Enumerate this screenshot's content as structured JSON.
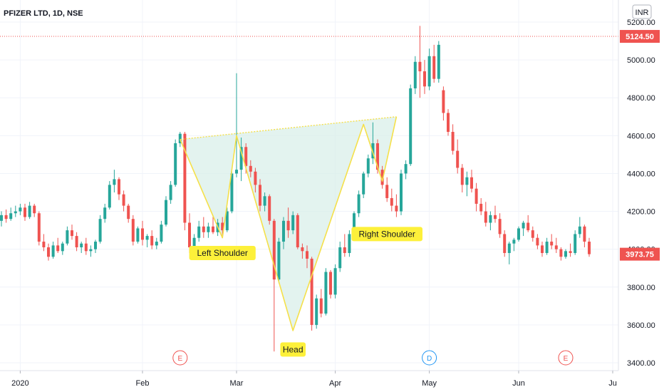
{
  "title": "PFIZER LTD, 1D, NSE",
  "currency": "INR",
  "colors": {
    "up": "#26a69a",
    "down": "#ef5350",
    "pattern": "#f5e04a",
    "fill": "#d9efea",
    "label_bg": "#fdf03a",
    "price_line": "#ef5350"
  },
  "chart_data": {
    "type": "candlestick",
    "y_ticks": [
      3400,
      3600,
      3800,
      4000,
      4200,
      4400,
      4600,
      4800,
      5000,
      5200
    ],
    "y_tick_labels": [
      "3400.00",
      "3600.00",
      "3800.00",
      "4000.00",
      "4200.00",
      "4400.00",
      "4600.00",
      "4800.00",
      "5000.00",
      "5200.00"
    ],
    "ylim": [
      3380,
      5270
    ],
    "x_ticks": [
      {
        "label": "2020",
        "index": 4
      },
      {
        "label": "Feb",
        "index": 30
      },
      {
        "label": "Mar",
        "index": 50
      },
      {
        "label": "Apr",
        "index": 71
      },
      {
        "label": "May",
        "index": 91
      },
      {
        "label": "Jun",
        "index": 110
      },
      {
        "label": "Ju",
        "index": 130
      }
    ],
    "x_range": [
      0,
      132
    ],
    "price_tags": [
      {
        "value": 5124.5,
        "label": "5124.50",
        "color": "#ef5350",
        "dotted_line": true
      },
      {
        "value": 3973.75,
        "label": "3973.75",
        "color": "#ef5350",
        "dotted_line": false
      }
    ],
    "events": [
      {
        "index": 38,
        "label": "E",
        "color": "#ef5350"
      },
      {
        "index": 91,
        "label": "D",
        "color": "#2196f3"
      },
      {
        "index": 120,
        "label": "E",
        "color": "#ef5350"
      }
    ],
    "pattern_points": [
      [
        38,
        4580
      ],
      [
        47,
        4060
      ],
      [
        50,
        4600
      ],
      [
        62,
        3570
      ],
      [
        77,
        4660
      ],
      [
        81,
        4360
      ],
      [
        84,
        4700
      ]
    ],
    "neckline": [
      [
        38,
        4580
      ],
      [
        84,
        4700
      ]
    ],
    "annotations": [
      {
        "text": "Left Shoulder",
        "index": 47,
        "value": 3980
      },
      {
        "text": "Head",
        "index": 62,
        "value": 3470
      },
      {
        "text": "Right Shoulder",
        "index": 82,
        "value": 4080
      }
    ],
    "candles": [
      [
        4150,
        4200,
        4120,
        4180
      ],
      [
        4180,
        4210,
        4140,
        4160
      ],
      [
        4160,
        4220,
        4150,
        4190
      ],
      [
        4190,
        4230,
        4170,
        4200
      ],
      [
        4200,
        4240,
        4180,
        4220
      ],
      [
        4220,
        4240,
        4150,
        4170
      ],
      [
        4170,
        4250,
        4160,
        4230
      ],
      [
        4230,
        4240,
        4170,
        4190
      ],
      [
        4190,
        4200,
        4020,
        4040
      ],
      [
        4040,
        4080,
        3990,
        4010
      ],
      [
        4010,
        4030,
        3940,
        3960
      ],
      [
        3960,
        4040,
        3950,
        4020
      ],
      [
        4020,
        4060,
        3980,
        3990
      ],
      [
        3990,
        4040,
        3970,
        4030
      ],
      [
        4030,
        4120,
        4020,
        4100
      ],
      [
        4100,
        4130,
        4050,
        4070
      ],
      [
        4070,
        4090,
        3990,
        4010
      ],
      [
        4010,
        4040,
        3980,
        4030
      ],
      [
        4030,
        4060,
        3970,
        3990
      ],
      [
        3990,
        4020,
        3960,
        4000
      ],
      [
        4000,
        4050,
        3980,
        4040
      ],
      [
        4040,
        4180,
        4030,
        4160
      ],
      [
        4160,
        4240,
        4140,
        4220
      ],
      [
        4220,
        4360,
        4210,
        4340
      ],
      [
        4340,
        4420,
        4300,
        4370
      ],
      [
        4370,
        4380,
        4260,
        4290
      ],
      [
        4290,
        4310,
        4200,
        4230
      ],
      [
        4230,
        4240,
        4140,
        4160
      ],
      [
        4160,
        4180,
        4020,
        4040
      ],
      [
        4040,
        4120,
        4030,
        4110
      ],
      [
        4110,
        4150,
        4020,
        4050
      ],
      [
        4050,
        4080,
        4010,
        4070
      ],
      [
        4070,
        4100,
        4000,
        4020
      ],
      [
        4020,
        4060,
        4000,
        4040
      ],
      [
        4040,
        4150,
        4030,
        4130
      ],
      [
        4130,
        4280,
        4120,
        4260
      ],
      [
        4260,
        4360,
        4240,
        4340
      ],
      [
        4340,
        4580,
        4330,
        4560
      ],
      [
        4560,
        4620,
        4540,
        4610
      ],
      [
        4610,
        4620,
        4100,
        4140
      ],
      [
        4140,
        4190,
        3980,
        4010
      ],
      [
        4010,
        4080,
        3990,
        4060
      ],
      [
        4060,
        4150,
        4040,
        4120
      ],
      [
        4120,
        4170,
        4060,
        4090
      ],
      [
        4090,
        4140,
        4060,
        4120
      ],
      [
        4120,
        4180,
        4080,
        4090
      ],
      [
        4090,
        4160,
        4070,
        4140
      ],
      [
        4140,
        4170,
        4060,
        4100
      ],
      [
        4100,
        4220,
        4090,
        4200
      ],
      [
        4200,
        4420,
        4190,
        4400
      ],
      [
        4400,
        4930,
        4380,
        4420
      ],
      [
        4420,
        4590,
        4360,
        4540
      ],
      [
        4540,
        4560,
        4400,
        4440
      ],
      [
        4440,
        4470,
        4380,
        4410
      ],
      [
        4410,
        4430,
        4300,
        4340
      ],
      [
        4340,
        4370,
        4200,
        4230
      ],
      [
        4230,
        4300,
        4200,
        4280
      ],
      [
        4280,
        4290,
        4130,
        4150
      ],
      [
        4150,
        4160,
        3460,
        3840
      ],
      [
        3840,
        4060,
        3820,
        4040
      ],
      [
        4040,
        4170,
        4000,
        4150
      ],
      [
        4150,
        4220,
        4060,
        4100
      ],
      [
        4100,
        4200,
        4080,
        4180
      ],
      [
        4180,
        4190,
        4000,
        4010
      ],
      [
        4010,
        4030,
        3950,
        3990
      ],
      [
        3990,
        4020,
        3900,
        3950
      ],
      [
        3950,
        3960,
        3570,
        3600
      ],
      [
        3600,
        3760,
        3580,
        3740
      ],
      [
        3740,
        3790,
        3640,
        3660
      ],
      [
        3660,
        3900,
        3650,
        3880
      ],
      [
        3880,
        3890,
        3740,
        3760
      ],
      [
        3760,
        3920,
        3740,
        3900
      ],
      [
        3900,
        4040,
        3880,
        4010
      ],
      [
        4010,
        4080,
        3960,
        3980
      ],
      [
        3980,
        4100,
        3960,
        4080
      ],
      [
        4080,
        4200,
        4060,
        4190
      ],
      [
        4190,
        4310,
        4170,
        4290
      ],
      [
        4290,
        4410,
        4270,
        4400
      ],
      [
        4400,
        4500,
        4380,
        4480
      ],
      [
        4480,
        4670,
        4450,
        4560
      ],
      [
        4560,
        4580,
        4400,
        4420
      ],
      [
        4420,
        4440,
        4320,
        4340
      ],
      [
        4340,
        4380,
        4250,
        4270
      ],
      [
        4270,
        4320,
        4200,
        4230
      ],
      [
        4230,
        4290,
        4170,
        4200
      ],
      [
        4200,
        4420,
        4180,
        4400
      ],
      [
        4400,
        4470,
        4370,
        4450
      ],
      [
        4450,
        4870,
        4440,
        4850
      ],
      [
        4850,
        5020,
        4820,
        4990
      ],
      [
        4990,
        5180,
        4800,
        4940
      ],
      [
        4940,
        5000,
        4820,
        4860
      ],
      [
        4860,
        5060,
        4840,
        5020
      ],
      [
        5020,
        5080,
        4880,
        4900
      ],
      [
        4900,
        5100,
        4880,
        5080
      ],
      [
        4840,
        4860,
        4680,
        4720
      ],
      [
        4720,
        4740,
        4600,
        4620
      ],
      [
        4620,
        4660,
        4500,
        4520
      ],
      [
        4520,
        4580,
        4400,
        4430
      ],
      [
        4430,
        4450,
        4300,
        4340
      ],
      [
        4340,
        4410,
        4280,
        4380
      ],
      [
        4380,
        4420,
        4300,
        4320
      ],
      [
        4320,
        4350,
        4200,
        4240
      ],
      [
        4240,
        4270,
        4180,
        4200
      ],
      [
        4200,
        4250,
        4120,
        4140
      ],
      [
        4140,
        4200,
        4100,
        4180
      ],
      [
        4180,
        4230,
        4140,
        4160
      ],
      [
        4160,
        4190,
        4060,
        4080
      ],
      [
        4080,
        4100,
        3960,
        3980
      ],
      [
        3980,
        4040,
        3920,
        4030
      ],
      [
        4030,
        4060,
        3990,
        4050
      ],
      [
        4050,
        4120,
        4040,
        4110
      ],
      [
        4110,
        4150,
        4070,
        4140
      ],
      [
        4140,
        4180,
        4090,
        4100
      ],
      [
        4100,
        4120,
        4040,
        4060
      ],
      [
        4060,
        4080,
        4000,
        4020
      ],
      [
        4020,
        4040,
        3960,
        3980
      ],
      [
        3980,
        4060,
        3970,
        4040
      ],
      [
        4040,
        4080,
        4000,
        4020
      ],
      [
        4020,
        4060,
        3980,
        4000
      ],
      [
        4000,
        4010,
        3940,
        3960
      ],
      [
        3960,
        4000,
        3950,
        3990
      ],
      [
        3990,
        4030,
        3960,
        3980
      ],
      [
        3980,
        4100,
        3970,
        4080
      ],
      [
        4080,
        4170,
        4060,
        4120
      ],
      [
        4120,
        4130,
        4010,
        4040
      ],
      [
        4040,
        4060,
        3960,
        3973.75
      ]
    ]
  }
}
